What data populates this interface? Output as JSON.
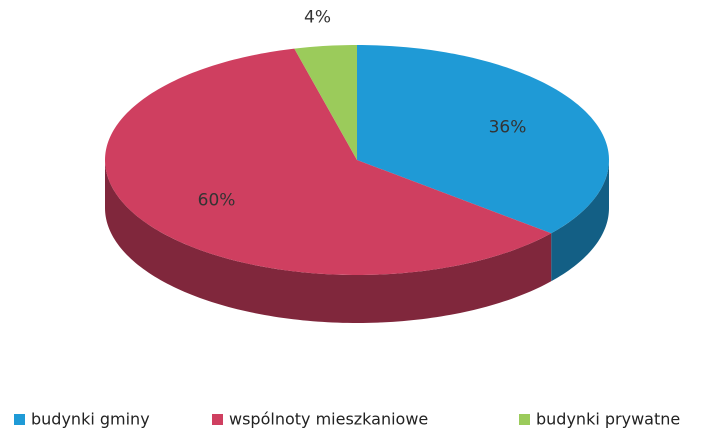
{
  "chart_data": {
    "type": "pie",
    "categories": [
      "budynki gminy",
      "wspólnoty mieszkaniowe",
      "budynki prywatne"
    ],
    "values": [
      36,
      60,
      4
    ],
    "value_labels": [
      "36%",
      "60%",
      "4%"
    ],
    "colors": [
      "#1f9ad6",
      "#cf3f60",
      "#9bcb5b"
    ],
    "start_angle": 0,
    "direction": "clockwise",
    "legend": "bottom"
  }
}
